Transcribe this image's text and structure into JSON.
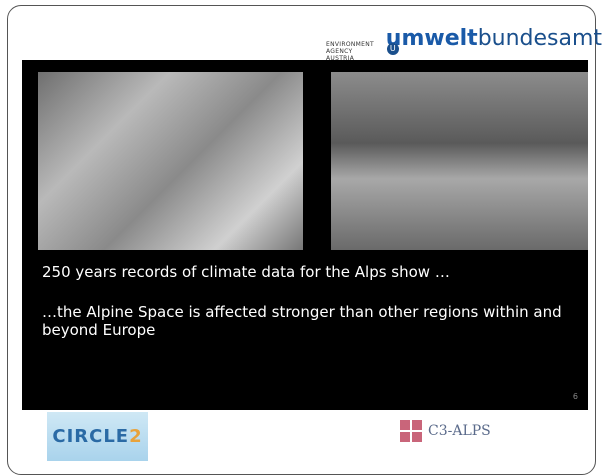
{
  "header": {
    "agency_line_1": "ENVIRONMENT",
    "agency_line_2": "AGENCY AUSTRIA",
    "brand_bold": "umwelt",
    "brand_regular": "bundesamt",
    "brand_mark": "U"
  },
  "slide": {
    "lines": [
      "250 years records of climate data for the Alps show …",
      "…the Alpine Space is affected stronger than other regions within and beyond Europe"
    ],
    "page_number": "6"
  },
  "footer": {
    "left_logo": "CIRCLE",
    "left_logo_suffix": "2",
    "right_logo": "C3-ALPS"
  }
}
